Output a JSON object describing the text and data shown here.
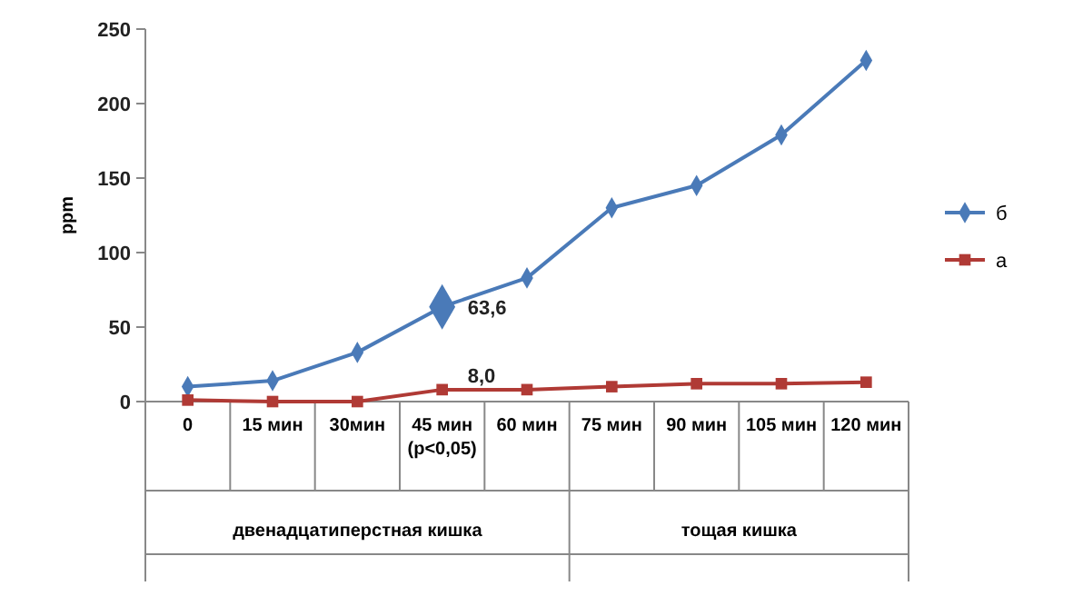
{
  "chart_data": {
    "type": "line",
    "ylabel": "ppm",
    "categories": [
      "0",
      "15 мин",
      "30мин",
      "45 мин\n(p<0,05)",
      "60 мин",
      "75 мин",
      "90 мин",
      "105 мин",
      "120 мин"
    ],
    "ylim": [
      0,
      250
    ],
    "yticks": [
      0,
      50,
      100,
      150,
      200,
      250
    ],
    "legend": "right",
    "series": [
      {
        "name": "б",
        "color": "#4a7ab8",
        "marker": "diamond",
        "values": [
          10,
          14,
          33,
          63.6,
          83,
          130,
          145,
          179,
          229
        ],
        "value_labels": [
          null,
          null,
          null,
          "63,6",
          null,
          null,
          null,
          null,
          null
        ]
      },
      {
        "name": "а",
        "color": "#b03a35",
        "marker": "square",
        "values": [
          1,
          0,
          0,
          8.0,
          8,
          10,
          12,
          12,
          13
        ],
        "value_labels": [
          null,
          null,
          null,
          "8,0",
          null,
          null,
          null,
          null,
          null
        ]
      }
    ],
    "annotations": [
      "двенадцатиперстная кишка",
      "тощая кишка"
    ]
  }
}
